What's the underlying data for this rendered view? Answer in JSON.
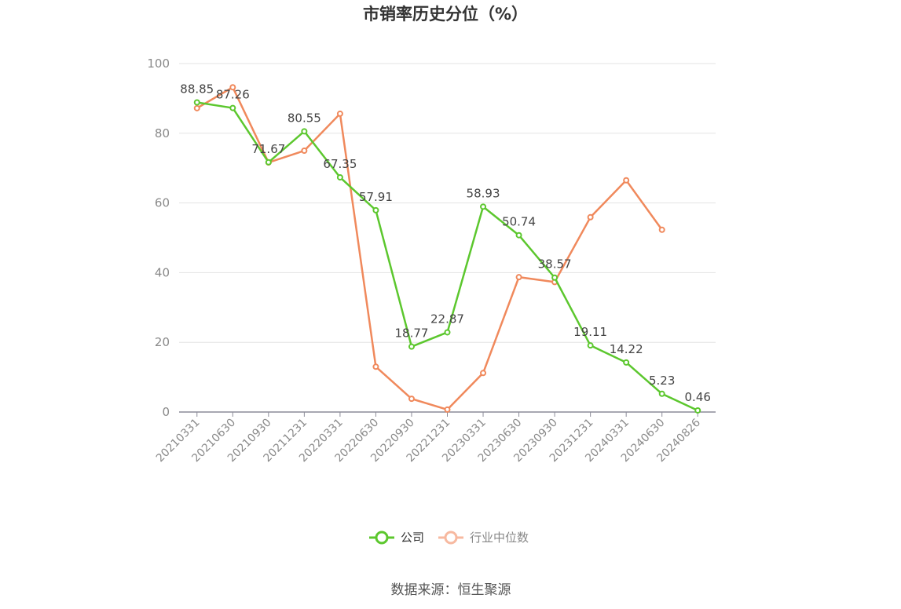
{
  "chart_data": {
    "type": "line",
    "title": "市销率历史分位（%）",
    "categories": [
      "20210331",
      "20210630",
      "20210930",
      "20211231",
      "20220331",
      "20220630",
      "20220930",
      "20221231",
      "20230331",
      "20230630",
      "20230930",
      "20231231",
      "20240331",
      "20240630",
      "20240826"
    ],
    "series": [
      {
        "name": "公司",
        "color": "#5cc72e",
        "values": [
          88.85,
          87.26,
          71.67,
          80.55,
          67.35,
          57.91,
          18.77,
          22.87,
          58.93,
          50.74,
          38.57,
          19.11,
          14.22,
          5.23,
          0.46
        ],
        "labels": [
          "88.85",
          "87.26",
          "71.67",
          "80.55",
          "67.35",
          "57.91",
          "18.77",
          "22.87",
          "58.93",
          "50.74",
          "38.57",
          "19.11",
          "14.22",
          "5.23",
          "0.46"
        ]
      },
      {
        "name": "行业中位数",
        "color": "#f0895c",
        "legend_color": "#f7b9a0",
        "values": [
          87.2,
          93.2,
          71.6,
          75.0,
          85.6,
          13.0,
          3.8,
          0.7,
          11.2,
          38.7,
          37.3,
          55.9,
          66.5,
          52.3,
          null
        ]
      }
    ],
    "ylim": [
      0,
      100
    ],
    "yticks": [
      "0",
      "20",
      "40",
      "60",
      "80",
      "100"
    ],
    "grid": true,
    "legend_position": "bottom"
  },
  "source": "数据来源：恒生聚源"
}
